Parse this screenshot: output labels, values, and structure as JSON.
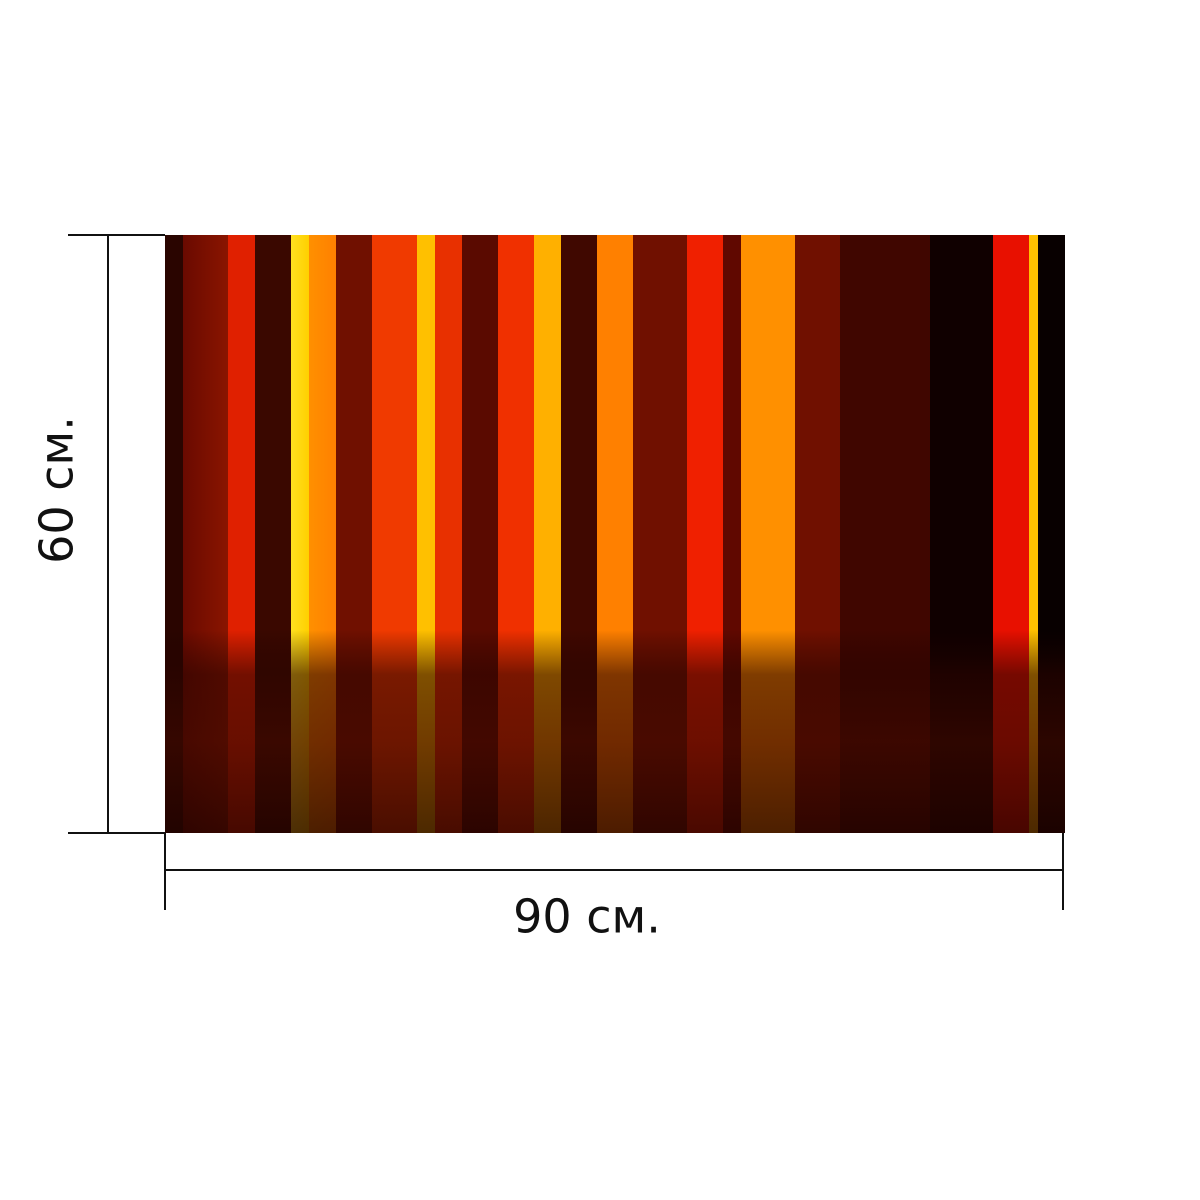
{
  "width_label": "90 см.",
  "height_label": "60 см."
}
